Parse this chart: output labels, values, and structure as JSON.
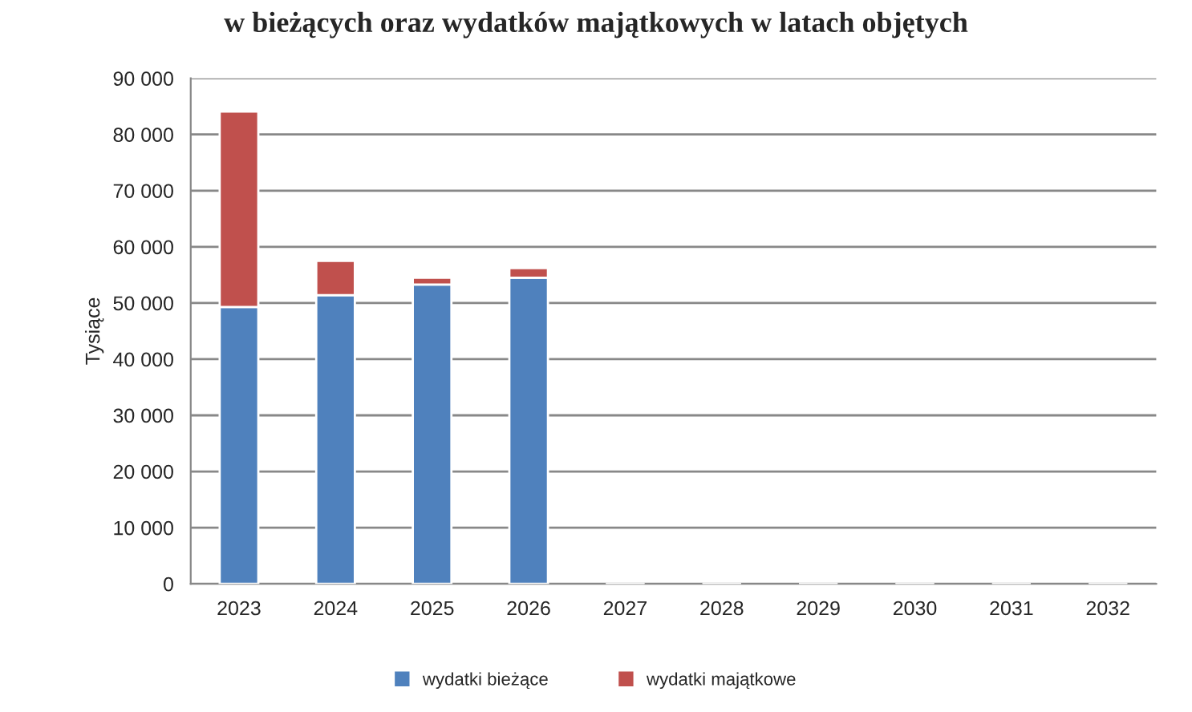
{
  "chart_data": {
    "type": "bar",
    "stacked": true,
    "title": "w bieżących oraz wydatków majątkowych w latach objętych",
    "ylabel": "Tysiące",
    "categories": [
      "2023",
      "2024",
      "2025",
      "2026",
      "2027",
      "2028",
      "2029",
      "2030",
      "2031",
      "2032"
    ],
    "series": [
      {
        "name": "wydatki bieżące",
        "color": "#4f81bd",
        "values": [
          49300,
          51400,
          53300,
          54500,
          null,
          null,
          null,
          null,
          null,
          null
        ]
      },
      {
        "name": "wydatki majątkowe",
        "color": "#c0504d",
        "values": [
          34800,
          6100,
          1200,
          1700,
          null,
          null,
          null,
          null,
          null,
          null
        ]
      }
    ],
    "ylim": [
      0,
      90000
    ],
    "yticks": [
      0,
      {
        "value": 10000,
        "label": "10 000"
      },
      {
        "value": 20000,
        "label": "20 000"
      },
      {
        "value": 30000,
        "label": "30 000"
      },
      {
        "value": 40000,
        "label": "40 000"
      },
      {
        "value": 50000,
        "label": "50 000"
      },
      {
        "value": 60000,
        "label": "60 000"
      },
      {
        "value": 70000,
        "label": "70 000"
      },
      {
        "value": 80000,
        "label": "80 000"
      },
      {
        "value": 90000,
        "label": "90 000"
      }
    ],
    "grid": "y",
    "legend": "bottom"
  }
}
